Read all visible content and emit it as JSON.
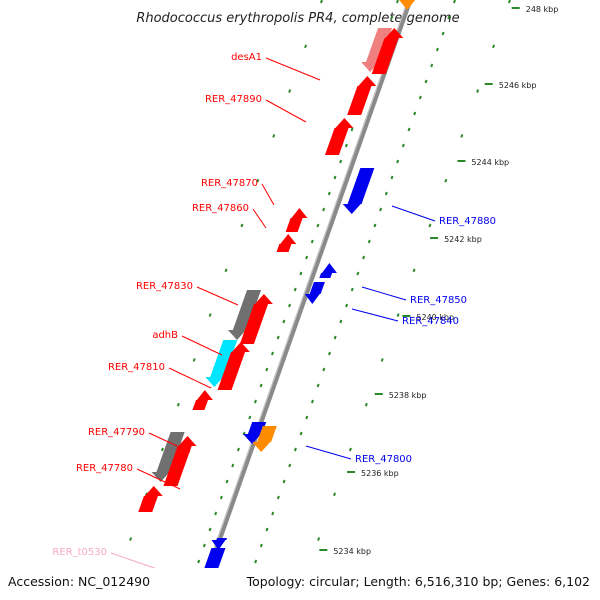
{
  "title": "Rhodococcus erythropolis PR4, complete genome",
  "footer": {
    "accession": "Accession: NC_012490",
    "summary": "Topology: circular; Length: 6,516,310 bp; Genes: 6,102"
  },
  "colors": {
    "gene": "#ff0000",
    "gene_pink": "#f08080",
    "rna": "#0000ee",
    "orange": "#ff8c00",
    "grey": "#707070",
    "cyan": "#00e5ff",
    "trna_pink": "#f7a9c6",
    "backbone": "#8a8a8a",
    "tick": "#2a8a2a"
  },
  "scale_labels": [
    "248 kbp",
    "5246 kbp",
    "5244 kbp",
    "5242 kbp",
    "5240 kbp",
    "5238 kbp",
    "5236 kbp",
    "5234 kbp"
  ],
  "left_labels": [
    {
      "text": "desA1",
      "color": "gene"
    },
    {
      "text": "RER_47890",
      "color": "gene"
    },
    {
      "text": "RER_47870",
      "color": "gene"
    },
    {
      "text": "RER_47860",
      "color": "gene"
    },
    {
      "text": "RER_47830",
      "color": "gene"
    },
    {
      "text": "adhB",
      "color": "gene"
    },
    {
      "text": "RER_47810",
      "color": "gene"
    },
    {
      "text": "RER_47790",
      "color": "gene"
    },
    {
      "text": "RER_47780",
      "color": "gene"
    },
    {
      "text": "RER_t0530",
      "color": "trna_pink"
    }
  ],
  "right_labels": [
    {
      "text": "RER_47880",
      "color": "rna"
    },
    {
      "text": "RER_47850",
      "color": "rna"
    },
    {
      "text": "RER_47840",
      "color": "rna"
    },
    {
      "text": "RER_47800",
      "color": "rna"
    }
  ]
}
